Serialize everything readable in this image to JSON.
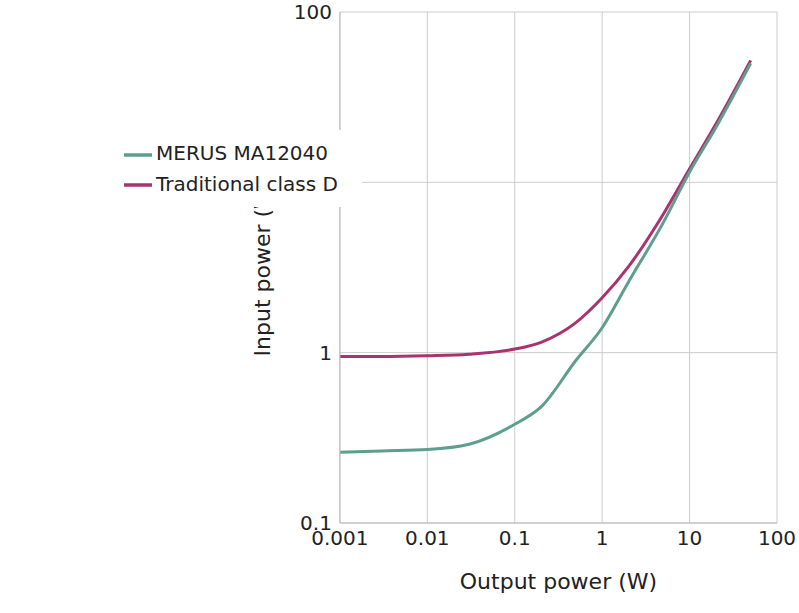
{
  "chart_data": {
    "type": "line",
    "x_label": "Output power (W)",
    "y_label": "Input power (W)",
    "x": [
      0.001,
      0.003,
      0.01,
      0.03,
      0.1,
      0.2,
      0.5,
      1,
      2,
      5,
      10,
      20,
      50
    ],
    "series": [
      {
        "name": "Traditional class D",
        "color": "#a8336f",
        "values": [
          0.95,
          0.95,
          0.96,
          0.98,
          1.05,
          1.15,
          1.5,
          2.1,
          3.2,
          6.5,
          12,
          22,
          52
        ]
      },
      {
        "name": "MERUS MA12040",
        "color": "#5e9e8e",
        "values": [
          0.26,
          0.265,
          0.27,
          0.29,
          0.38,
          0.48,
          0.9,
          1.4,
          2.6,
          5.8,
          11.5,
          21,
          50
        ]
      }
    ],
    "xlim": [
      0.001,
      100
    ],
    "ylim": [
      0.1,
      100
    ],
    "xticks": [
      0.001,
      0.01,
      0.1,
      1,
      10,
      100
    ],
    "yticks": [
      0.1,
      1,
      10,
      100
    ],
    "log": true,
    "grid": true,
    "legend": "upper left"
  }
}
